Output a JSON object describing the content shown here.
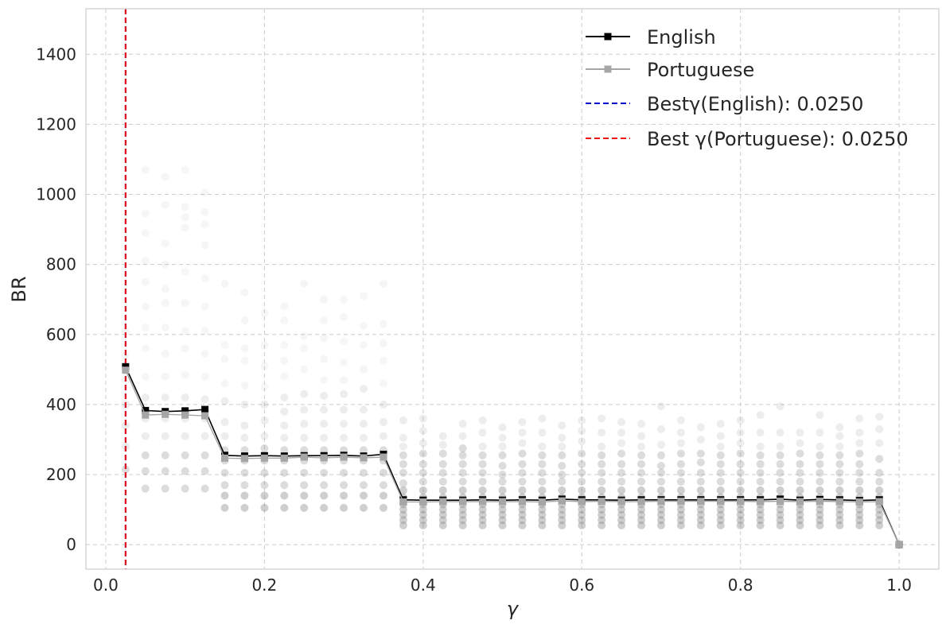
{
  "chart_data": {
    "type": "line",
    "title": "",
    "xlabel": "γ",
    "ylabel": "BR",
    "xlim": [
      -0.025,
      1.05
    ],
    "ylim": [
      -70,
      1530
    ],
    "xticks": [
      0.0,
      0.2,
      0.4,
      0.6,
      0.8,
      1.0
    ],
    "xtick_labels": [
      "0.0",
      "0.2",
      "0.4",
      "0.6",
      "0.8",
      "1.0"
    ],
    "yticks": [
      0,
      200,
      400,
      600,
      800,
      1000,
      1200,
      1400
    ],
    "ytick_labels": [
      "0",
      "200",
      "400",
      "600",
      "800",
      "1000",
      "1200",
      "1400"
    ],
    "grid": true,
    "legend_position": "top-right",
    "x": [
      0.025,
      0.05,
      0.075,
      0.1,
      0.125,
      0.15,
      0.175,
      0.2,
      0.225,
      0.25,
      0.275,
      0.3,
      0.325,
      0.35,
      0.375,
      0.4,
      0.425,
      0.45,
      0.475,
      0.5,
      0.525,
      0.55,
      0.575,
      0.6,
      0.625,
      0.65,
      0.675,
      0.7,
      0.725,
      0.75,
      0.775,
      0.8,
      0.825,
      0.85,
      0.875,
      0.9,
      0.925,
      0.95,
      0.975,
      1.0
    ],
    "series": [
      {
        "name": "English",
        "color": "#000000",
        "values": [
          508,
          383,
          380,
          382,
          386,
          255,
          253,
          254,
          253,
          254,
          254,
          255,
          253,
          258,
          128,
          127,
          127,
          127,
          128,
          127,
          128,
          127,
          130,
          128,
          128,
          127,
          128,
          128,
          128,
          128,
          128,
          128,
          128,
          130,
          127,
          129,
          128,
          126,
          128,
          0
        ]
      },
      {
        "name": "Portuguese",
        "color": "#a6a6a6",
        "values": [
          498,
          370,
          372,
          370,
          368,
          247,
          246,
          247,
          247,
          250,
          248,
          250,
          248,
          250,
          122,
          122,
          123,
          123,
          123,
          123,
          123,
          122,
          125,
          123,
          124,
          123,
          123,
          124,
          124,
          124,
          124,
          124,
          123,
          124,
          123,
          124,
          123,
          122,
          123,
          0
        ]
      }
    ],
    "reference_lines": [
      {
        "label": "Bestγ(English): 0.0250",
        "x": 0.025,
        "color": "#0000cc",
        "style": "dashed"
      },
      {
        "label": "Best γ(Portuguese): 0.0250",
        "x": 0.025,
        "color": "#ee1111",
        "style": "dashed"
      }
    ],
    "scatter_color": "#8c8c8c",
    "scatter_groups": [
      {
        "x": 0.025,
        "values": [
          215,
          280,
          340,
          400,
          470,
          540,
          610
        ]
      },
      {
        "x": 0.05,
        "values": [
          160,
          210,
          255,
          310,
          360,
          420,
          480,
          560,
          620,
          680,
          750,
          810,
          890,
          945,
          1070
        ]
      },
      {
        "x": 0.075,
        "values": [
          160,
          210,
          255,
          310,
          360,
          420,
          480,
          545,
          620,
          690,
          730,
          800,
          860,
          970,
          1050
        ]
      },
      {
        "x": 0.1,
        "values": [
          160,
          210,
          255,
          310,
          360,
          420,
          485,
          560,
          610,
          690,
          780,
          905,
          935,
          965,
          1070
        ]
      },
      {
        "x": 0.125,
        "values": [
          160,
          210,
          255,
          310,
          360,
          415,
          480,
          545,
          610,
          680,
          760,
          855,
          915,
          950,
          1005
        ]
      },
      {
        "x": 0.15,
        "values": [
          105,
          140,
          170,
          205,
          240,
          270,
          310,
          350,
          410,
          460,
          530,
          570,
          745
        ]
      },
      {
        "x": 0.175,
        "values": [
          105,
          140,
          170,
          205,
          240,
          270,
          305,
          340,
          400,
          455,
          525,
          560,
          640,
          720
        ]
      },
      {
        "x": 0.2,
        "values": [
          105,
          140,
          170,
          205,
          240,
          275,
          310,
          355,
          400,
          450,
          510,
          570,
          660
        ]
      },
      {
        "x": 0.225,
        "values": [
          105,
          140,
          170,
          205,
          240,
          270,
          305,
          340,
          380,
          420,
          480,
          525,
          570,
          640,
          680
        ]
      },
      {
        "x": 0.25,
        "values": [
          105,
          140,
          170,
          205,
          240,
          270,
          305,
          345,
          385,
          430,
          500,
          560,
          595,
          745
        ]
      },
      {
        "x": 0.275,
        "values": [
          105,
          140,
          170,
          205,
          240,
          270,
          305,
          345,
          385,
          425,
          470,
          530,
          590,
          640,
          700
        ]
      },
      {
        "x": 0.3,
        "values": [
          105,
          140,
          170,
          205,
          240,
          270,
          305,
          345,
          385,
          430,
          470,
          520,
          580,
          650,
          700
        ]
      },
      {
        "x": 0.325,
        "values": [
          105,
          140,
          170,
          205,
          240,
          270,
          305,
          345,
          385,
          445,
          500,
          570,
          625,
          710
        ]
      },
      {
        "x": 0.35,
        "values": [
          105,
          140,
          170,
          205,
          240,
          270,
          310,
          350,
          400,
          460,
          525,
          575,
          630,
          745
        ]
      },
      {
        "x": 0.375,
        "values": [
          55,
          70,
          85,
          100,
          115,
          135,
          155,
          175,
          205,
          230,
          255,
          280,
          305,
          355
        ]
      },
      {
        "x": 0.4,
        "values": [
          55,
          70,
          85,
          100,
          115,
          135,
          155,
          180,
          205,
          230,
          260,
          290,
          325,
          360
        ]
      },
      {
        "x": 0.425,
        "values": [
          55,
          70,
          85,
          100,
          115,
          135,
          155,
          180,
          205,
          230,
          260,
          285,
          310
        ]
      },
      {
        "x": 0.45,
        "values": [
          55,
          70,
          85,
          100,
          115,
          135,
          155,
          180,
          205,
          230,
          255,
          275,
          310,
          345
        ]
      },
      {
        "x": 0.475,
        "values": [
          55,
          70,
          85,
          100,
          115,
          135,
          155,
          180,
          205,
          230,
          255,
          280,
          320,
          355
        ]
      },
      {
        "x": 0.5,
        "values": [
          55,
          70,
          85,
          100,
          115,
          135,
          155,
          180,
          200,
          225,
          255,
          280,
          305,
          335
        ]
      },
      {
        "x": 0.525,
        "values": [
          55,
          70,
          85,
          100,
          115,
          135,
          155,
          180,
          205,
          230,
          260,
          290,
          320,
          350
        ]
      },
      {
        "x": 0.55,
        "values": [
          55,
          70,
          85,
          100,
          115,
          135,
          155,
          180,
          205,
          230,
          255,
          280,
          320,
          360
        ]
      },
      {
        "x": 0.575,
        "values": [
          55,
          70,
          85,
          100,
          115,
          135,
          155,
          180,
          200,
          225,
          255,
          280,
          305,
          340
        ]
      },
      {
        "x": 0.6,
        "values": [
          55,
          70,
          85,
          100,
          115,
          135,
          155,
          180,
          205,
          230,
          260,
          295,
          325,
          355
        ]
      },
      {
        "x": 0.625,
        "values": [
          55,
          70,
          85,
          100,
          115,
          135,
          155,
          180,
          205,
          230,
          255,
          280,
          320,
          360
        ]
      },
      {
        "x": 0.65,
        "values": [
          55,
          70,
          85,
          100,
          115,
          135,
          155,
          180,
          205,
          230,
          260,
          290,
          320,
          350
        ]
      },
      {
        "x": 0.675,
        "values": [
          55,
          70,
          85,
          100,
          115,
          135,
          155,
          180,
          205,
          230,
          255,
          280,
          310,
          345
        ]
      },
      {
        "x": 0.7,
        "values": [
          55,
          70,
          85,
          100,
          115,
          135,
          155,
          180,
          205,
          225,
          255,
          285,
          330,
          395
        ]
      },
      {
        "x": 0.725,
        "values": [
          55,
          70,
          85,
          100,
          115,
          135,
          155,
          180,
          205,
          230,
          260,
          290,
          320,
          355
        ]
      },
      {
        "x": 0.75,
        "values": [
          55,
          70,
          85,
          100,
          115,
          135,
          155,
          180,
          205,
          235,
          260,
          300,
          335
        ]
      },
      {
        "x": 0.775,
        "values": [
          55,
          70,
          85,
          100,
          115,
          135,
          155,
          180,
          205,
          230,
          255,
          280,
          310,
          345
        ]
      },
      {
        "x": 0.8,
        "values": [
          55,
          70,
          85,
          100,
          115,
          135,
          155,
          180,
          205,
          230,
          260,
          290,
          320,
          355
        ]
      },
      {
        "x": 0.825,
        "values": [
          55,
          70,
          85,
          100,
          115,
          135,
          155,
          180,
          205,
          230,
          255,
          280,
          320,
          370
        ]
      },
      {
        "x": 0.85,
        "values": [
          55,
          70,
          85,
          100,
          115,
          135,
          155,
          180,
          205,
          230,
          255,
          280,
          320,
          395
        ]
      },
      {
        "x": 0.875,
        "values": [
          55,
          70,
          85,
          100,
          115,
          135,
          155,
          180,
          205,
          230,
          260,
          290,
          320
        ]
      },
      {
        "x": 0.9,
        "values": [
          55,
          70,
          85,
          100,
          115,
          135,
          155,
          180,
          205,
          230,
          255,
          280,
          320,
          370
        ]
      },
      {
        "x": 0.925,
        "values": [
          55,
          70,
          85,
          100,
          115,
          135,
          155,
          180,
          205,
          230,
          255,
          280,
          310,
          335
        ]
      },
      {
        "x": 0.95,
        "values": [
          55,
          70,
          85,
          100,
          115,
          135,
          155,
          180,
          205,
          230,
          260,
          290,
          320,
          360
        ]
      },
      {
        "x": 0.975,
        "values": [
          55,
          70,
          85,
          100,
          115,
          135,
          155,
          180,
          205,
          245,
          290,
          330,
          365
        ]
      },
      {
        "x": 1.0,
        "values": [
          0
        ]
      }
    ]
  }
}
